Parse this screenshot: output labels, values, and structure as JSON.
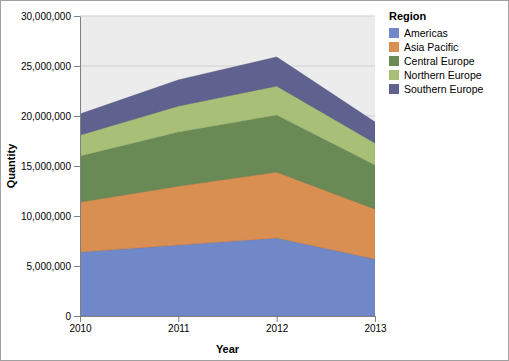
{
  "chart_data": {
    "type": "area",
    "stacked": true,
    "x_label": "Year",
    "y_label": "Quantity",
    "legend_title": "Region",
    "legend": "top-right",
    "grid": true,
    "x": [
      2010,
      2011,
      2012,
      2013
    ],
    "xlim": [
      2010,
      2013
    ],
    "xticks": [
      2010,
      2011,
      2012,
      2013
    ],
    "ylim": [
      0,
      30000000
    ],
    "yticks": [
      0,
      {
        "value": 5000000,
        "label": "5,000,000"
      },
      {
        "value": 10000000,
        "label": "10,000,000"
      },
      {
        "value": 15000000,
        "label": "15,000,000"
      },
      {
        "value": 20000000,
        "label": "20,000,000"
      },
      {
        "value": 25000000,
        "label": "25,000,000"
      },
      {
        "value": 30000000,
        "label": "30,000,000"
      }
    ],
    "series": [
      {
        "name": "Americas",
        "color": "#7087c8",
        "values": [
          6400000,
          7100000,
          7800000,
          5700000
        ]
      },
      {
        "name": "Asia Pacific",
        "color": "#d98e52",
        "values": [
          5000000,
          5900000,
          6600000,
          5000000
        ]
      },
      {
        "name": "Central Europe",
        "color": "#6a8a55",
        "values": [
          4600000,
          5400000,
          5700000,
          4400000
        ]
      },
      {
        "name": "Northern Europe",
        "color": "#a8bf78",
        "values": [
          2100000,
          2600000,
          2900000,
          2200000
        ]
      },
      {
        "name": "Southern Europe",
        "color": "#5f618f",
        "values": [
          2100000,
          2600000,
          2900000,
          2100000
        ]
      }
    ]
  }
}
